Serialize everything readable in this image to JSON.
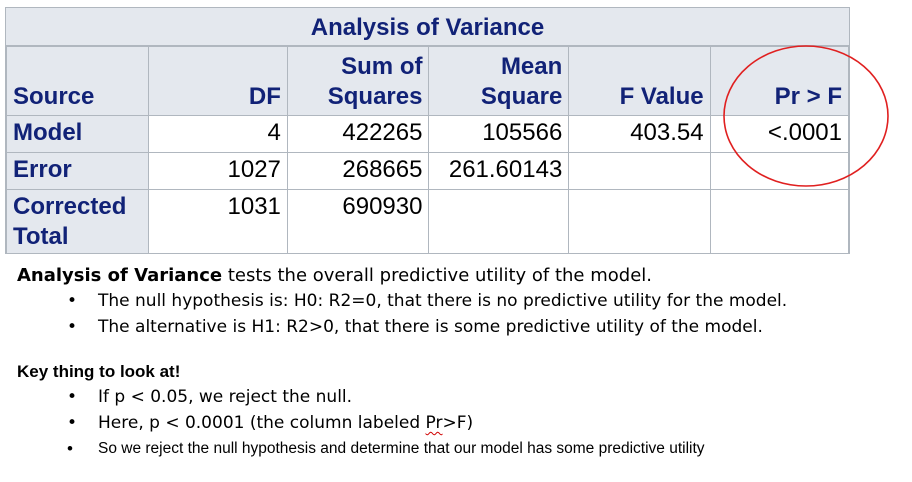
{
  "table": {
    "title": "Analysis of Variance",
    "headers": {
      "source": "Source",
      "df": "DF",
      "ss_line1": "Sum of",
      "ss_line2": "Squares",
      "ms_line1": "Mean",
      "ms_line2": "Square",
      "f": "F Value",
      "p": "Pr > F"
    },
    "rows": [
      {
        "source": "Model",
        "df": "4",
        "ss": "422265",
        "ms": "105566",
        "f": "403.54",
        "p": "<.0001"
      },
      {
        "source": "Error",
        "df": "1027",
        "ss": "268665",
        "ms": "261.60143",
        "f": "",
        "p": ""
      },
      {
        "source_line1": "Corrected",
        "source_line2": "Total",
        "df": "1031",
        "ss": "690930",
        "ms": "",
        "f": "",
        "p": ""
      }
    ],
    "colors": {
      "header_bg": "#e4e8ee",
      "header_text": "#112277",
      "border": "#b0b7bf",
      "highlight_circle": "#e02020"
    }
  },
  "explanation": {
    "lead_bold": "Analysis of Variance",
    "lead_rest": " tests the overall predictive utility of the model.",
    "bullets": [
      "The null hypothesis is: H0: R2=0, that there is no predictive utility for the model.",
      "The alternative is H1: R2>0, that there is some predictive utility of the model."
    ],
    "key_title": "Key thing to look at!",
    "key_bullets": {
      "b1": "If p < 0.05, we reject the null.",
      "b2_pre": "Here, p < 0.0001 (the column labeled ",
      "b2_mark": "Pr",
      "b2_post": ">F)",
      "b3": "So we reject the null hypothesis and determine that our model has some predictive utility"
    },
    "bullet_glyph": "•"
  }
}
